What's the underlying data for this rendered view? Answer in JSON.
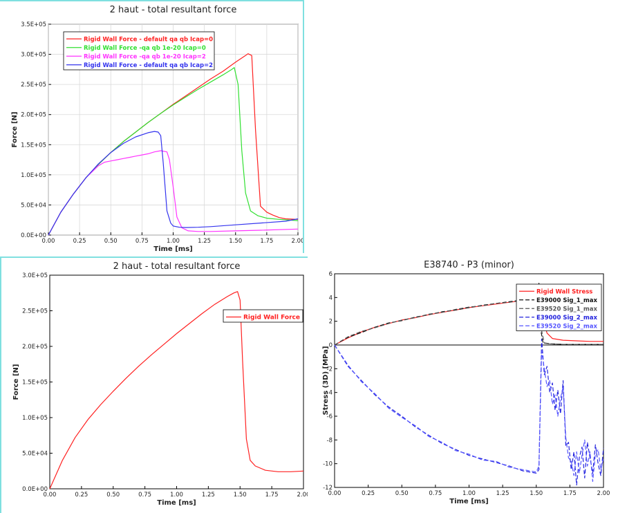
{
  "chart_data": [
    {
      "type": "line",
      "title": "2 haut - total resultant force",
      "xlabel": "Time [ms]",
      "ylabel": "Force [N]",
      "xlim": [
        0,
        2
      ],
      "ylim": [
        0,
        350000
      ],
      "xticks": [
        "0.00",
        "0.25",
        "0.50",
        "0.75",
        "1.00",
        "1.25",
        "1.50",
        "1.75",
        "2.00"
      ],
      "yticks": [
        "0.0E+00",
        "5.0E+04",
        "1.0E+05",
        "1.5E+05",
        "2.0E+05",
        "2.5E+05",
        "3.0E+05",
        "3.5E+05"
      ],
      "legend_position": "top-left",
      "grid": true,
      "series": [
        {
          "name": "Rigid Wall Force - default qa qb Icap=0",
          "color": "#ff2020",
          "x": [
            0,
            0.1,
            0.2,
            0.3,
            0.4,
            0.5,
            0.6,
            0.7,
            0.8,
            0.9,
            1.0,
            1.1,
            1.2,
            1.3,
            1.4,
            1.5,
            1.58,
            1.6,
            1.63,
            1.66,
            1.7,
            1.75,
            1.8,
            1.85,
            1.9,
            2.0
          ],
          "y": [
            0,
            38000,
            68000,
            95000,
            117000,
            137000,
            155000,
            171000,
            187000,
            202000,
            217000,
            231000,
            245000,
            259000,
            272000,
            287000,
            298000,
            301000,
            298000,
            175000,
            48000,
            38000,
            33000,
            29000,
            27000,
            26000
          ]
        },
        {
          "name": "Rigid Wall Force -qa qb 1e-20 Icap=0",
          "color": "#30e030",
          "x": [
            0,
            0.1,
            0.2,
            0.3,
            0.4,
            0.5,
            0.6,
            0.7,
            0.8,
            0.9,
            1.0,
            1.1,
            1.2,
            1.3,
            1.4,
            1.47,
            1.49,
            1.52,
            1.55,
            1.58,
            1.62,
            1.68,
            1.75,
            1.85,
            2.0
          ],
          "y": [
            0,
            38000,
            68000,
            95000,
            117000,
            137000,
            155000,
            171000,
            187000,
            202000,
            216000,
            229000,
            242000,
            254000,
            266000,
            275000,
            278000,
            250000,
            140000,
            70000,
            40000,
            32000,
            28000,
            26000,
            24000
          ]
        },
        {
          "name": "Rigid Wall Force -qa qb 1e-20 Icap=2",
          "color": "#ff33ff",
          "x": [
            0,
            0.1,
            0.2,
            0.3,
            0.4,
            0.45,
            0.5,
            0.55,
            0.6,
            0.65,
            0.7,
            0.75,
            0.8,
            0.85,
            0.9,
            0.95,
            0.97,
            1.0,
            1.03,
            1.07,
            1.12,
            1.2,
            1.3,
            1.5,
            1.7,
            2.0
          ],
          "y": [
            0,
            38000,
            68000,
            95000,
            115000,
            121000,
            123000,
            125000,
            127000,
            129000,
            131000,
            133000,
            135000,
            138000,
            140000,
            138000,
            125000,
            80000,
            30000,
            12000,
            7000,
            6000,
            6000,
            7000,
            8000,
            10000
          ]
        },
        {
          "name": "Rigid Wall Force - default qa qb Icap=2",
          "color": "#3333ee",
          "x": [
            0,
            0.1,
            0.2,
            0.3,
            0.4,
            0.5,
            0.6,
            0.7,
            0.8,
            0.85,
            0.88,
            0.9,
            0.92,
            0.95,
            0.98,
            1.0,
            1.05,
            1.1,
            1.2,
            1.3,
            1.5,
            1.7,
            1.9,
            2.0
          ],
          "y": [
            0,
            38000,
            68000,
            95000,
            118000,
            137000,
            152000,
            163000,
            170000,
            172000,
            171000,
            165000,
            120000,
            40000,
            20000,
            15000,
            13000,
            12500,
            13000,
            14000,
            17000,
            20000,
            23000,
            27000
          ]
        }
      ]
    },
    {
      "type": "line",
      "title": "2 haut - total resultant force",
      "xlabel": "Time [ms]",
      "ylabel": "Force [N]",
      "xlim": [
        0,
        2
      ],
      "ylim": [
        0,
        300000
      ],
      "xticks": [
        "0.00",
        "0.25",
        "0.50",
        "0.75",
        "1.00",
        "1.25",
        "1.50",
        "1.75",
        "2.00"
      ],
      "yticks": [
        "0.0E+00",
        "5.0E+04",
        "1.0E+05",
        "1.5E+05",
        "2.0E+05",
        "2.5E+05",
        "3.0E+05"
      ],
      "legend_position": "top-right",
      "grid": false,
      "series": [
        {
          "name": "Rigid Wall Force",
          "color": "#ff2020",
          "x": [
            0,
            0.1,
            0.2,
            0.3,
            0.4,
            0.5,
            0.6,
            0.7,
            0.8,
            0.9,
            1.0,
            1.1,
            1.2,
            1.3,
            1.4,
            1.45,
            1.48,
            1.5,
            1.52,
            1.55,
            1.58,
            1.62,
            1.7,
            1.8,
            1.9,
            2.0
          ],
          "y": [
            0,
            40000,
            72000,
            97000,
            118000,
            137000,
            155000,
            172000,
            188000,
            203000,
            218000,
            232000,
            246000,
            259000,
            270000,
            275000,
            277000,
            265000,
            180000,
            70000,
            40000,
            32000,
            26000,
            24000,
            24000,
            25000
          ]
        }
      ]
    },
    {
      "type": "line",
      "title": "E38740 - P3 (minor)",
      "xlabel": "Time [ms]",
      "ylabel": "Stress (3D) [MPa]",
      "xlim": [
        0,
        2
      ],
      "ylim": [
        -12,
        6
      ],
      "xticks": [
        "0.00",
        "0.25",
        "0.50",
        "0.75",
        "1.00",
        "1.25",
        "1.50",
        "1.75",
        "2.00"
      ],
      "yticks": [
        "-12",
        "-10",
        "-8",
        "-6",
        "-4",
        "-2",
        "0",
        "2",
        "4",
        "6"
      ],
      "legend_position": "top-right",
      "grid": false,
      "series": [
        {
          "name": "Rigid Wall Stress",
          "color": "#ff2020",
          "dash": "",
          "x": [
            0,
            0.1,
            0.2,
            0.3,
            0.4,
            0.5,
            0.6,
            0.7,
            0.8,
            0.9,
            1.0,
            1.1,
            1.2,
            1.3,
            1.4,
            1.5,
            1.53,
            1.55,
            1.58,
            1.62,
            1.7,
            1.8,
            1.9,
            2.0
          ],
          "y": [
            0,
            0.6,
            1.1,
            1.5,
            1.8,
            2.1,
            2.3,
            2.55,
            2.75,
            2.95,
            3.15,
            3.3,
            3.45,
            3.6,
            3.75,
            3.9,
            3.95,
            2.2,
            1.0,
            0.55,
            0.4,
            0.35,
            0.3,
            0.3
          ]
        },
        {
          "name": "E39000 Sig_1_max",
          "color": "#111111",
          "dash": "6,3",
          "x": [
            0,
            0.1,
            0.2,
            0.3,
            0.4,
            0.5,
            0.6,
            0.7,
            0.8,
            0.9,
            1.0,
            1.1,
            1.2,
            1.3,
            1.4,
            1.5,
            1.52,
            1.53,
            1.55,
            1.6,
            1.7,
            1.8,
            1.9,
            2.0
          ],
          "y": [
            0,
            0.65,
            1.05,
            1.5,
            1.85,
            2.05,
            2.35,
            2.55,
            2.8,
            2.95,
            3.15,
            3.35,
            3.5,
            3.65,
            3.8,
            3.85,
            5.2,
            1.5,
            0.2,
            0.1,
            0.05,
            0.05,
            0.05,
            0.05
          ]
        },
        {
          "name": "E39520 Sig_1_max",
          "color": "#555555",
          "dash": "6,3",
          "x": [
            0,
            0.1,
            0.2,
            0.3,
            0.4,
            0.5,
            0.6,
            0.7,
            0.8,
            0.9,
            1.0,
            1.1,
            1.2,
            1.3,
            1.4,
            1.5,
            1.52,
            1.54,
            1.56,
            1.6,
            1.7,
            1.8,
            1.9,
            2.0
          ],
          "y": [
            0,
            0.7,
            1.15,
            1.45,
            1.8,
            2.1,
            2.3,
            2.6,
            2.75,
            3.0,
            3.2,
            3.3,
            3.5,
            3.6,
            3.75,
            3.9,
            4.8,
            1.2,
            0.15,
            0.1,
            0.05,
            0.05,
            0.05,
            0.05
          ]
        },
        {
          "name": "E39000 Sig_2_max",
          "color": "#2222dd",
          "dash": "6,3",
          "x": [
            0,
            0.1,
            0.2,
            0.3,
            0.4,
            0.5,
            0.6,
            0.7,
            0.8,
            0.9,
            1.0,
            1.1,
            1.2,
            1.3,
            1.4,
            1.5,
            1.52,
            1.54,
            1.56,
            1.58,
            1.6,
            1.62,
            1.64,
            1.66,
            1.68,
            1.7,
            1.72,
            1.74,
            1.76,
            1.78,
            1.8,
            1.82,
            1.84,
            1.86,
            1.88,
            1.9,
            1.92,
            1.94,
            1.96,
            1.98,
            2.0
          ],
          "y": [
            0,
            -1.8,
            -3.0,
            -4.2,
            -5.2,
            -6.0,
            -6.9,
            -7.6,
            -8.3,
            -8.8,
            -9.3,
            -9.6,
            -9.9,
            -10.2,
            -10.6,
            -10.8,
            -10.5,
            0.5,
            -2.5,
            -1.8,
            -4.0,
            -3.2,
            -5.5,
            -3.8,
            -5.8,
            -3.0,
            -8.5,
            -8.2,
            -10.5,
            -9.0,
            -11.8,
            -9.5,
            -8.6,
            -11.2,
            -8.2,
            -9.5,
            -10.8,
            -8.4,
            -10.0,
            -11.0,
            -8.7
          ]
        },
        {
          "name": "E39520 Sig_2_max",
          "color": "#5555ff",
          "dash": "6,3",
          "x": [
            0,
            0.1,
            0.2,
            0.3,
            0.4,
            0.5,
            0.6,
            0.7,
            0.8,
            0.9,
            1.0,
            1.1,
            1.2,
            1.3,
            1.4,
            1.5,
            1.52,
            1.54,
            1.56,
            1.58,
            1.6,
            1.62,
            1.64,
            1.66,
            1.68,
            1.7,
            1.72,
            1.74,
            1.76,
            1.78,
            1.8,
            1.82,
            1.84,
            1.86,
            1.88,
            1.9,
            1.92,
            1.94,
            1.96,
            1.98,
            2.0
          ],
          "y": [
            0,
            -1.7,
            -3.1,
            -4.1,
            -5.3,
            -6.1,
            -6.8,
            -7.7,
            -8.2,
            -8.9,
            -9.2,
            -9.7,
            -9.8,
            -10.3,
            -10.5,
            -10.7,
            -10.2,
            -0.5,
            -2.0,
            -3.5,
            -3.0,
            -5.0,
            -4.2,
            -6.0,
            -4.5,
            -3.5,
            -7.8,
            -9.5,
            -9.8,
            -11.0,
            -9.0,
            -10.8,
            -9.3,
            -8.0,
            -10.2,
            -9.0,
            -11.5,
            -9.2,
            -8.8,
            -10.5,
            -9.6
          ]
        }
      ]
    }
  ]
}
